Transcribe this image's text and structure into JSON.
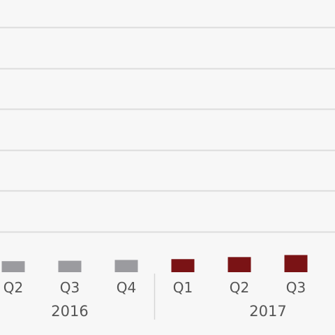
{
  "chart_data": {
    "type": "bar",
    "title": "",
    "xlabel": "",
    "ylabel": "",
    "grid": true,
    "categories": [
      "Q2",
      "Q3",
      "Q4",
      "Q1",
      "Q2",
      "Q3"
    ],
    "groups": [
      {
        "label": "2016",
        "categories": [
          "Q2",
          "Q3",
          "Q4"
        ]
      },
      {
        "label": "2017",
        "categories": [
          "Q1",
          "Q2",
          "Q3"
        ]
      }
    ],
    "values": [
      2.7,
      2.8,
      3.0,
      3.2,
      3.7,
      4.2
    ],
    "bar_colors": [
      "#9b9b9f",
      "#9b9b9f",
      "#9b9b9f",
      "#7a1315",
      "#7a1315",
      "#7a1315"
    ],
    "ylim": [
      0,
      60
    ],
    "y_grid_values": [
      10,
      20,
      30,
      40,
      50,
      60
    ]
  },
  "colors": {
    "background": "#f7f7f7",
    "gridline": "#dcdcdc",
    "text": "#555555",
    "divider": "#d6d6d6"
  }
}
